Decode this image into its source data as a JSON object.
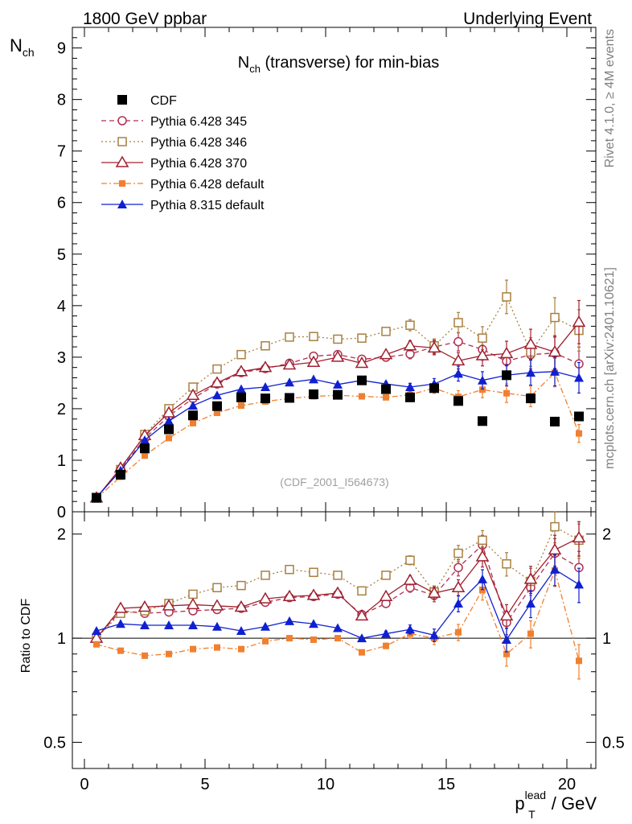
{
  "chart_data": {
    "type": "scatter",
    "header_left": "1800 GeV ppbar",
    "header_right": "Underlying Event",
    "title": "N_ch (transverse) for min-bias",
    "title_main": "N",
    "title_sub": "ch",
    "title_rest": " (transverse) for min-bias",
    "ylabel_main": "N",
    "ylabel_sub": "ch",
    "ratio_ylabel": "Ratio to CDF",
    "xlabel_main": "p",
    "xlabel_sup": "lead",
    "xlabel_sub": "T",
    "xlabel_rest": " / GeV",
    "analysis_label": "(CDF_2001_I564673)",
    "side_label_top": "Rivet 4.1.0, ≥ 4M events",
    "side_label_bottom": "mcplots.cern.ch [arXiv:2401.10621]",
    "xlim": [
      -0.5,
      21.2
    ],
    "ylim": [
      0,
      9.4
    ],
    "ratio_ylim": [
      0.42,
      2.32
    ],
    "x_ticks": [
      "0",
      "5",
      "10",
      "15",
      "20"
    ],
    "y_ticks": [
      "0",
      "1",
      "2",
      "3",
      "4",
      "5",
      "6",
      "7",
      "8",
      "9"
    ],
    "ratio_ticks": [
      "0.5",
      "1",
      "2"
    ],
    "x": [
      0.5,
      1.5,
      2.5,
      3.5,
      4.5,
      5.5,
      6.5,
      7.5,
      8.5,
      9.5,
      10.5,
      11.5,
      12.5,
      13.5,
      14.5,
      15.5,
      16.5,
      17.5,
      18.5,
      19.5,
      20.5
    ],
    "series": [
      {
        "name": "CDF",
        "color": "#000000",
        "marker": "square-filled",
        "line": "none",
        "values": [
          0.27,
          0.72,
          1.23,
          1.6,
          1.87,
          2.05,
          2.22,
          2.2,
          2.21,
          2.28,
          2.27,
          2.55,
          2.38,
          2.22,
          2.4,
          2.15,
          1.76,
          2.65,
          2.2,
          1.75,
          1.85
        ],
        "ratio": [
          1,
          1,
          1,
          1,
          1,
          1,
          1,
          1,
          1,
          1,
          1,
          1,
          1,
          1,
          1,
          1,
          1,
          1,
          1,
          1,
          1
        ]
      },
      {
        "name": "Pythia 6.428 345",
        "color": "#b03050",
        "marker": "circle-open",
        "line": "dashed",
        "values": [
          0.27,
          0.82,
          1.42,
          1.86,
          2.2,
          2.48,
          2.7,
          2.78,
          2.88,
          3.02,
          3.05,
          2.96,
          3.0,
          3.06,
          3.2,
          3.3,
          3.15,
          2.92,
          3.05,
          3.08,
          2.87
        ],
        "ratio": [
          1.0,
          1.2,
          1.18,
          1.19,
          1.2,
          1.21,
          1.22,
          1.27,
          1.31,
          1.32,
          1.34,
          1.17,
          1.26,
          1.4,
          1.33,
          1.6,
          1.86,
          1.11,
          1.4,
          1.76,
          1.6
        ]
      },
      {
        "name": "Pythia 6.428 346",
        "color": "#a88040",
        "marker": "square-open",
        "line": "dotted",
        "values": [
          0.28,
          0.82,
          1.5,
          2.0,
          2.42,
          2.77,
          3.05,
          3.22,
          3.39,
          3.4,
          3.35,
          3.37,
          3.5,
          3.62,
          3.22,
          3.67,
          3.37,
          4.17,
          3.1,
          3.77,
          3.52
        ],
        "ratio": [
          1.0,
          1.18,
          1.2,
          1.26,
          1.34,
          1.4,
          1.42,
          1.52,
          1.58,
          1.55,
          1.52,
          1.37,
          1.52,
          1.68,
          1.36,
          1.76,
          1.92,
          1.64,
          1.46,
          2.1,
          1.92
        ]
      },
      {
        "name": "Pythia 6.428 370",
        "color": "#a02030",
        "marker": "triangle-open",
        "line": "solid",
        "values": [
          0.27,
          0.85,
          1.48,
          1.92,
          2.26,
          2.5,
          2.72,
          2.8,
          2.85,
          2.9,
          3.0,
          2.88,
          3.05,
          3.22,
          3.18,
          2.93,
          3.03,
          3.07,
          3.25,
          3.1,
          3.68
        ],
        "ratio": [
          1.0,
          1.22,
          1.23,
          1.24,
          1.25,
          1.24,
          1.23,
          1.3,
          1.32,
          1.33,
          1.35,
          1.16,
          1.32,
          1.47,
          1.35,
          1.4,
          1.72,
          1.16,
          1.48,
          1.8,
          1.95
        ]
      },
      {
        "name": "Pythia 6.428 default",
        "color": "#f08030",
        "marker": "square-small",
        "line": "dashdot",
        "values": [
          0.26,
          0.68,
          1.09,
          1.43,
          1.72,
          1.92,
          2.06,
          2.14,
          2.2,
          2.24,
          2.26,
          2.24,
          2.22,
          2.27,
          2.4,
          2.23,
          2.37,
          2.3,
          2.24,
          2.7,
          1.52
        ],
        "ratio": [
          0.96,
          0.92,
          0.89,
          0.9,
          0.93,
          0.94,
          0.93,
          0.98,
          1.0,
          0.99,
          1.0,
          0.91,
          0.95,
          1.03,
          1.0,
          1.04,
          1.38,
          0.9,
          1.03,
          1.57,
          0.86
        ]
      },
      {
        "name": "Pythia 8.315 default",
        "color": "#1020d0",
        "marker": "triangle-filled",
        "line": "solid",
        "values": [
          0.28,
          0.8,
          1.39,
          1.76,
          2.06,
          2.26,
          2.38,
          2.42,
          2.51,
          2.57,
          2.47,
          2.55,
          2.48,
          2.42,
          2.48,
          2.68,
          2.55,
          2.65,
          2.7,
          2.72,
          2.6
        ],
        "ratio": [
          1.05,
          1.1,
          1.09,
          1.09,
          1.09,
          1.08,
          1.05,
          1.08,
          1.12,
          1.1,
          1.07,
          1.0,
          1.03,
          1.06,
          1.02,
          1.26,
          1.48,
          0.99,
          1.26,
          1.58,
          1.43
        ]
      }
    ]
  }
}
